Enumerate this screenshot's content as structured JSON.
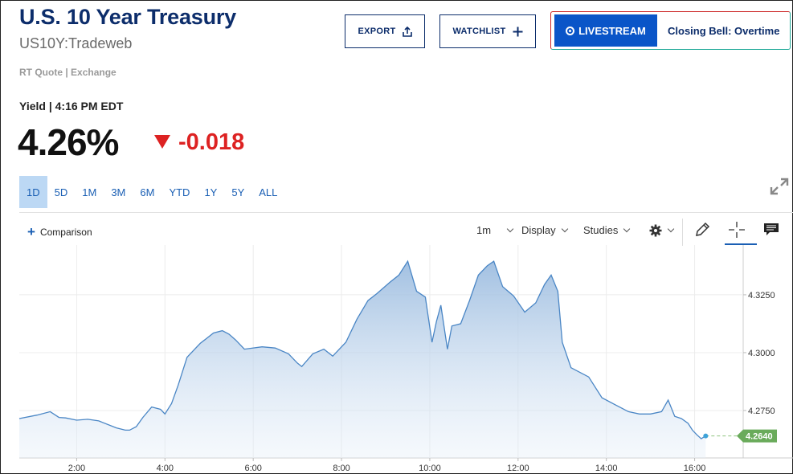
{
  "header": {
    "title": "U.S. 10 Year Treasury",
    "subtitle": "US10Y:Tradeweb",
    "rt_quote": "RT Quote | Exchange",
    "export_label": "EXPORT",
    "watchlist_label": "WATCHLIST",
    "livestream_label": "LIVESTREAM",
    "livestream_show": "Closing Bell: Overtime"
  },
  "quote": {
    "yield_label": "Yield | 4:16 PM EDT",
    "price": "4.26%",
    "change": "-0.018",
    "direction": "down"
  },
  "ranges": [
    "1D",
    "5D",
    "1M",
    "3M",
    "6M",
    "YTD",
    "1Y",
    "5Y",
    "ALL"
  ],
  "active_range": "1D",
  "toolbar": {
    "comparison_label": "Comparison",
    "interval_label": "1m",
    "display_label": "Display",
    "studies_label": "Studies"
  },
  "colors": {
    "brand_blue": "#0c2d6b",
    "accent_blue": "#1a5fb4",
    "down_red": "#d22222",
    "line": "#4a86c5",
    "last_price_bg": "#6aab5b"
  },
  "chart_data": {
    "type": "area",
    "x_tick_labels": [
      "2:00",
      "4:00",
      "6:00",
      "8:00",
      "10:00",
      "12:00",
      "14:00",
      "16:00"
    ],
    "y_tick_labels": [
      "4.3250",
      "4.3000",
      "4.2750"
    ],
    "ylim": [
      4.2545,
      4.3465
    ],
    "xlim": [
      0.7,
      17.1
    ],
    "last_value_label": "4.2640",
    "last_value": 4.264,
    "x": [
      0.7,
      1.1,
      1.4,
      1.6,
      1.75,
      2.0,
      2.25,
      2.5,
      2.9,
      3.1,
      3.2,
      3.35,
      3.5,
      3.7,
      3.9,
      4.0,
      4.15,
      4.3,
      4.5,
      4.8,
      5.1,
      5.3,
      5.45,
      5.6,
      5.8,
      6.2,
      6.5,
      6.8,
      7.0,
      7.1,
      7.35,
      7.6,
      7.8,
      8.1,
      8.35,
      8.6,
      8.8,
      9.1,
      9.3,
      9.5,
      9.7,
      9.9,
      10.05,
      10.15,
      10.25,
      10.4,
      10.5,
      10.7,
      10.9,
      11.1,
      11.3,
      11.45,
      11.65,
      11.9,
      12.15,
      12.4,
      12.6,
      12.75,
      12.9,
      13.0,
      13.2,
      13.6,
      13.9,
      14.2,
      14.5,
      14.75,
      15.0,
      15.25,
      15.4,
      15.55,
      15.7,
      15.85,
      15.95,
      16.05,
      16.15,
      16.25
    ],
    "y": [
      4.2715,
      4.273,
      4.2745,
      4.272,
      4.2718,
      4.2708,
      4.2712,
      4.2705,
      4.2675,
      4.2665,
      4.2665,
      4.268,
      4.272,
      4.2765,
      4.2755,
      4.2735,
      4.278,
      4.286,
      4.298,
      4.304,
      4.3085,
      4.3095,
      4.308,
      4.3055,
      4.3015,
      4.3025,
      4.302,
      4.2995,
      4.2955,
      4.294,
      4.2995,
      4.3015,
      4.2985,
      4.3045,
      4.3145,
      4.3225,
      4.3255,
      4.3305,
      4.3335,
      4.3395,
      4.3265,
      4.324,
      4.3045,
      4.3135,
      4.3205,
      4.3015,
      4.3115,
      4.3125,
      4.3225,
      4.3335,
      4.3375,
      4.3395,
      4.3285,
      4.3245,
      4.3175,
      4.3215,
      4.3295,
      4.3335,
      4.3265,
      4.3045,
      4.2935,
      4.2895,
      4.2805,
      4.2775,
      4.2745,
      4.2735,
      4.2735,
      4.2745,
      4.2795,
      4.2725,
      4.2715,
      4.2695,
      4.2665,
      4.2645,
      4.2628,
      4.264
    ]
  }
}
